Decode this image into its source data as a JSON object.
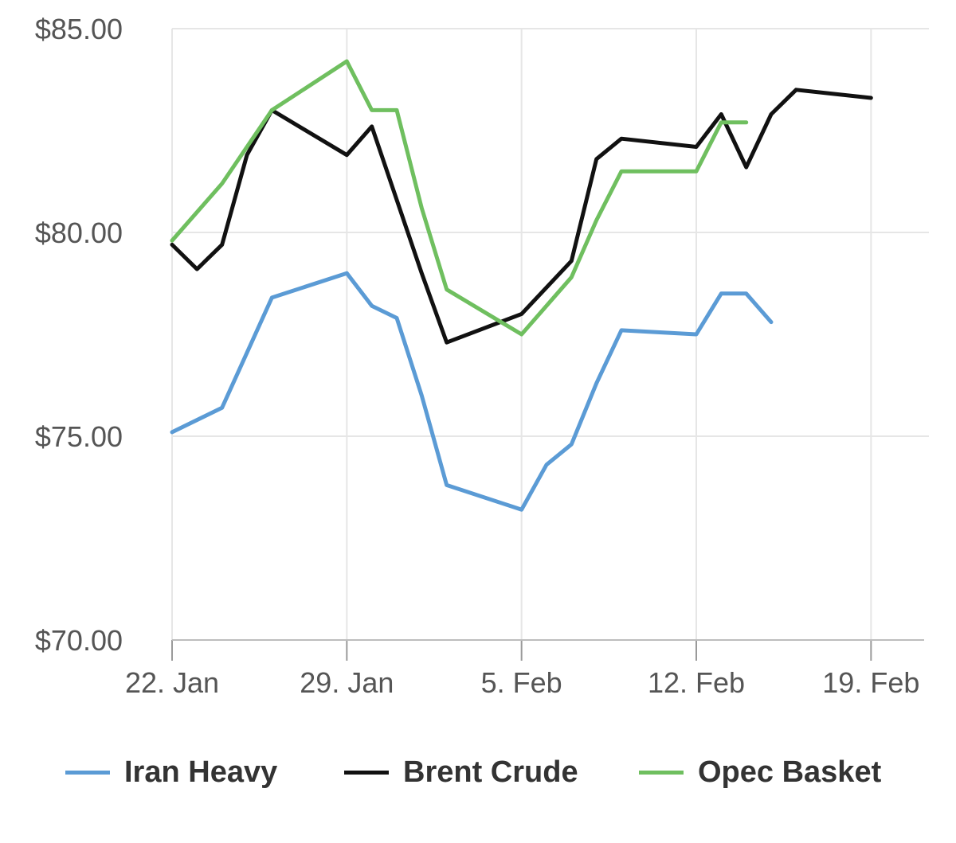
{
  "chart_data": {
    "type": "line",
    "title": "",
    "xlabel": "",
    "ylabel": "",
    "ylim": [
      70,
      85
    ],
    "yticks": [
      {
        "value": 70,
        "label": "$70.00"
      },
      {
        "value": 75,
        "label": "$75.00"
      },
      {
        "value": 80,
        "label": "$80.00"
      },
      {
        "value": 85,
        "label": "$85.00"
      }
    ],
    "xlim": [
      "2018-01-22",
      "2018-02-21"
    ],
    "xticks": [
      {
        "date": "2018-01-22",
        "label": "22. Jan"
      },
      {
        "date": "2018-01-29",
        "label": "29. Jan"
      },
      {
        "date": "2018-02-05",
        "label": "5. Feb"
      },
      {
        "date": "2018-02-12",
        "label": "12. Feb"
      },
      {
        "date": "2018-02-19",
        "label": "19. Feb"
      }
    ],
    "grid": true,
    "legend_position": "bottom",
    "series": [
      {
        "name": "Iran Heavy",
        "color": "#5b9bd5",
        "points": [
          [
            "2018-01-22",
            75.1
          ],
          [
            "2018-01-24",
            75.7
          ],
          [
            "2018-01-26",
            78.4
          ],
          [
            "2018-01-29",
            79.0
          ],
          [
            "2018-01-30",
            78.2
          ],
          [
            "2018-01-31",
            77.9
          ],
          [
            "2018-02-01",
            76.0
          ],
          [
            "2018-02-02",
            73.8
          ],
          [
            "2018-02-05",
            73.2
          ],
          [
            "2018-02-06",
            74.3
          ],
          [
            "2018-02-07",
            74.8
          ],
          [
            "2018-02-08",
            76.3
          ],
          [
            "2018-02-09",
            77.6
          ],
          [
            "2018-02-12",
            77.5
          ],
          [
            "2018-02-13",
            78.5
          ],
          [
            "2018-02-14",
            78.5
          ],
          [
            "2018-02-15",
            77.8
          ]
        ]
      },
      {
        "name": "Brent Crude",
        "color": "#111111",
        "points": [
          [
            "2018-01-22",
            79.7
          ],
          [
            "2018-01-23",
            79.1
          ],
          [
            "2018-01-24",
            79.7
          ],
          [
            "2018-01-25",
            81.9
          ],
          [
            "2018-01-26",
            83.0
          ],
          [
            "2018-01-29",
            81.9
          ],
          [
            "2018-01-30",
            82.6
          ],
          [
            "2018-02-01",
            79.0
          ],
          [
            "2018-02-02",
            77.3
          ],
          [
            "2018-02-05",
            78.0
          ],
          [
            "2018-02-07",
            79.3
          ],
          [
            "2018-02-08",
            81.8
          ],
          [
            "2018-02-09",
            82.3
          ],
          [
            "2018-02-12",
            82.1
          ],
          [
            "2018-02-13",
            82.9
          ],
          [
            "2018-02-14",
            81.6
          ],
          [
            "2018-02-15",
            82.9
          ],
          [
            "2018-02-16",
            83.5
          ],
          [
            "2018-02-19",
            83.3
          ]
        ]
      },
      {
        "name": "Opec Basket",
        "color": "#6fbf5f",
        "points": [
          [
            "2018-01-22",
            79.8
          ],
          [
            "2018-01-24",
            81.2
          ],
          [
            "2018-01-26",
            83.0
          ],
          [
            "2018-01-29",
            84.2
          ],
          [
            "2018-01-30",
            83.0
          ],
          [
            "2018-01-31",
            83.0
          ],
          [
            "2018-02-01",
            80.6
          ],
          [
            "2018-02-02",
            78.6
          ],
          [
            "2018-02-05",
            77.5
          ],
          [
            "2018-02-07",
            78.9
          ],
          [
            "2018-02-08",
            80.3
          ],
          [
            "2018-02-09",
            81.5
          ],
          [
            "2018-02-12",
            81.5
          ],
          [
            "2018-02-13",
            82.7
          ],
          [
            "2018-02-14",
            82.7
          ]
        ]
      }
    ]
  }
}
